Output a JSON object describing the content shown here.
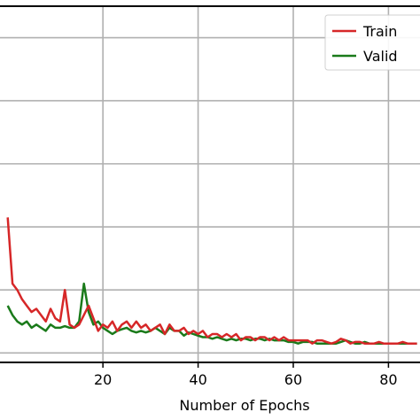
{
  "chart_data": {
    "type": "line",
    "title": "",
    "xlabel": "Number of Epochs",
    "ylabel": "",
    "xlim": [
      -2,
      87
    ],
    "ylim": [
      -0.03,
      1.1
    ],
    "grid": true,
    "legend": {
      "placement": "top-right",
      "entries": [
        "Train",
        "Valid"
      ]
    },
    "x_ticks": [
      20,
      40,
      60,
      80
    ],
    "x_tick_labels": [
      "20",
      "40",
      "60",
      "80"
    ],
    "colors": {
      "Train": "#d62728",
      "Valid": "#1a7a1a"
    },
    "series": [
      {
        "name": "Train",
        "x": [
          0,
          1,
          2,
          3,
          4,
          5,
          6,
          7,
          8,
          9,
          10,
          11,
          12,
          13,
          14,
          15,
          16,
          17,
          18,
          19,
          20,
          21,
          22,
          23,
          24,
          25,
          26,
          27,
          28,
          29,
          30,
          31,
          32,
          33,
          34,
          35,
          36,
          37,
          38,
          39,
          40,
          41,
          42,
          43,
          44,
          45,
          46,
          47,
          48,
          49,
          50,
          51,
          52,
          53,
          54,
          55,
          56,
          57,
          58,
          59,
          60,
          61,
          62,
          63,
          64,
          65,
          66,
          67,
          68,
          69,
          70,
          71,
          72,
          73,
          74,
          75,
          76,
          77,
          78,
          79,
          80,
          81,
          82,
          83,
          84,
          85,
          86
        ],
        "values": [
          0.43,
          0.22,
          0.2,
          0.17,
          0.15,
          0.13,
          0.14,
          0.12,
          0.1,
          0.14,
          0.11,
          0.1,
          0.2,
          0.09,
          0.08,
          0.09,
          0.12,
          0.15,
          0.11,
          0.07,
          0.09,
          0.08,
          0.1,
          0.07,
          0.09,
          0.1,
          0.08,
          0.1,
          0.08,
          0.09,
          0.07,
          0.08,
          0.09,
          0.06,
          0.09,
          0.07,
          0.07,
          0.08,
          0.06,
          0.07,
          0.06,
          0.07,
          0.05,
          0.06,
          0.06,
          0.05,
          0.06,
          0.05,
          0.06,
          0.04,
          0.05,
          0.05,
          0.04,
          0.05,
          0.05,
          0.04,
          0.05,
          0.04,
          0.05,
          0.04,
          0.04,
          0.04,
          0.04,
          0.04,
          0.03,
          0.04,
          0.04,
          0.035,
          0.03,
          0.035,
          0.045,
          0.04,
          0.03,
          0.035,
          0.035,
          0.03,
          0.03,
          0.03,
          0.035,
          0.03,
          0.03,
          0.03,
          0.03,
          0.035,
          0.03,
          0.03,
          0.03
        ]
      },
      {
        "name": "Valid",
        "x": [
          0,
          1,
          2,
          3,
          4,
          5,
          6,
          7,
          8,
          9,
          10,
          11,
          12,
          13,
          14,
          15,
          16,
          17,
          18,
          19,
          20,
          21,
          22,
          23,
          24,
          25,
          26,
          27,
          28,
          29,
          30,
          31,
          32,
          33,
          34,
          35,
          36,
          37,
          38,
          39,
          40,
          41,
          42,
          43,
          44,
          45,
          46,
          47,
          48,
          49,
          50,
          51,
          52,
          53,
          54,
          55,
          56,
          57,
          58,
          59,
          60,
          61,
          62,
          63,
          64,
          65,
          66,
          67,
          68,
          69,
          70,
          71,
          72,
          73,
          74,
          75,
          76,
          77,
          78,
          79,
          80,
          81,
          82,
          83,
          84,
          85,
          86
        ],
        "values": [
          0.15,
          0.12,
          0.1,
          0.09,
          0.1,
          0.08,
          0.09,
          0.08,
          0.07,
          0.09,
          0.08,
          0.08,
          0.085,
          0.08,
          0.08,
          0.1,
          0.22,
          0.13,
          0.09,
          0.1,
          0.08,
          0.07,
          0.06,
          0.07,
          0.075,
          0.08,
          0.07,
          0.065,
          0.07,
          0.065,
          0.07,
          0.08,
          0.07,
          0.06,
          0.08,
          0.07,
          0.07,
          0.055,
          0.065,
          0.06,
          0.055,
          0.05,
          0.05,
          0.045,
          0.05,
          0.045,
          0.04,
          0.045,
          0.04,
          0.045,
          0.045,
          0.04,
          0.045,
          0.045,
          0.04,
          0.045,
          0.04,
          0.04,
          0.04,
          0.035,
          0.035,
          0.03,
          0.035,
          0.035,
          0.035,
          0.03,
          0.03,
          0.03,
          0.03,
          0.03,
          0.035,
          0.04,
          0.035,
          0.03,
          0.03,
          0.035,
          0.03,
          0.03,
          0.03,
          0.03,
          0.03,
          0.03,
          0.03,
          0.03,
          0.03,
          0.03,
          0.03
        ]
      }
    ]
  }
}
